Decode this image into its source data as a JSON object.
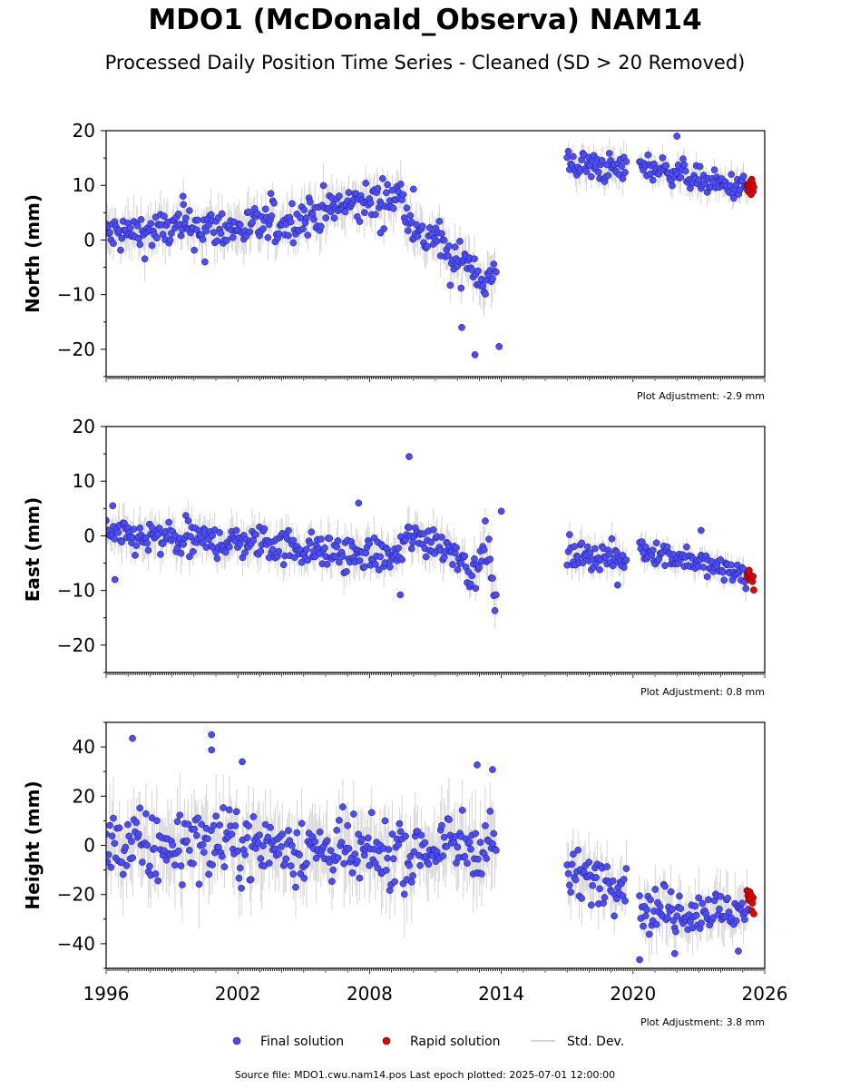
{
  "title": "MDO1 (McDonald_Observa) NAM14",
  "subtitle": "Processed Daily Position Time Series - Cleaned (SD > 20 Removed)",
  "colors": {
    "final": "#4b4bff",
    "final_edge": "#1a1a5c",
    "rapid": "#e00000",
    "stddev": "#b0b0b0"
  },
  "chart_data": {
    "type": "scatter",
    "x_range": [
      1996,
      2026
    ],
    "x_ticks": [
      "1996",
      "2002",
      "2008",
      "2014",
      "2020",
      "2026"
    ],
    "x_tick_values": [
      1996,
      2002,
      2008,
      2014,
      2020,
      2026
    ],
    "legend": {
      "placement": "bottom-center",
      "entries": [
        "Final solution",
        "Rapid solution",
        "Std. Dev."
      ]
    },
    "panels": [
      {
        "name": "north",
        "ylabel": "North (mm)",
        "ylim": [
          -25,
          20
        ],
        "yticks": [
          20,
          10,
          0,
          -10,
          -20
        ],
        "yticklabels": [
          "20",
          "10",
          "0",
          "−10",
          "−20"
        ],
        "adjustment": "Plot Adjustment: -2.9 mm",
        "segments": [
          {
            "series": "final",
            "x": [
              1996.0,
              1998,
              2000,
              2002,
              2004,
              2006,
              2008,
              2009.5,
              2010.3,
              2011,
              2011.8,
              2012.5,
              2013.2,
              2013.8
            ],
            "y": [
              1,
              1.5,
              2.5,
              2,
              3,
              5.5,
              7,
              8,
              0,
              1,
              -5,
              -3,
              -8,
              -6
            ],
            "spread": 3.5
          },
          {
            "series": "final",
            "x": [
              2017.0,
              2018,
              2019,
              2019.7
            ],
            "y": [
              14,
              13.5,
              13,
              13
            ],
            "spread": 2.5
          },
          {
            "series": "final",
            "x": [
              2020.3,
              2021,
              2022,
              2023,
              2024,
              2025.3
            ],
            "y": [
              14,
              13,
              12.5,
              11,
              10,
              9.5
            ],
            "spread": 2.2
          },
          {
            "series": "rapid",
            "x": [
              2025.2,
              2025.5
            ],
            "y": [
              10,
              9.5
            ],
            "spread": 1.5
          }
        ],
        "outliers": [
          {
            "x": 2022.0,
            "y": 19
          },
          {
            "x": 2012.8,
            "y": -21
          },
          {
            "x": 2013.9,
            "y": -19.5
          },
          {
            "x": 2012.2,
            "y": -16
          },
          {
            "x": 1999.5,
            "y": 8
          },
          {
            "x": 2003.5,
            "y": 8.5
          },
          {
            "x": 2000.5,
            "y": -4
          },
          {
            "x": 2008.5,
            "y": 1.3
          },
          {
            "x": 2010.0,
            "y": 9.3
          }
        ]
      },
      {
        "name": "east",
        "ylabel": "East (mm)",
        "ylim": [
          -25,
          20
        ],
        "yticks": [
          20,
          10,
          0,
          -10,
          -20
        ],
        "yticklabels": [
          "20",
          "10",
          "0",
          "−10",
          "−20"
        ],
        "adjustment": "Plot Adjustment: 0.8 mm",
        "segments": [
          {
            "series": "final",
            "x": [
              1996.0,
              1998,
              2000,
              2002,
              2004,
              2006,
              2008,
              2009.3,
              2009.8,
              2011,
              2012,
              2012.8,
              2013.3,
              2013.8
            ],
            "y": [
              0,
              -0.5,
              -1,
              -1,
              -1.5,
              -3,
              -3.5,
              -4,
              0,
              -1,
              -3,
              -8,
              0,
              -15
            ],
            "spread": 3
          },
          {
            "series": "final",
            "x": [
              2017.0,
              2018,
              2019,
              2019.7
            ],
            "y": [
              -3,
              -3.5,
              -4,
              -4.5
            ],
            "spread": 2.5
          },
          {
            "series": "final",
            "x": [
              2020.3,
              2021,
              2022,
              2023,
              2024,
              2025.3
            ],
            "y": [
              -2,
              -3,
              -4,
              -5,
              -6,
              -7.5
            ],
            "spread": 2
          },
          {
            "series": "rapid",
            "x": [
              2025.2,
              2025.5
            ],
            "y": [
              -7,
              -8.5
            ],
            "spread": 1.5
          }
        ],
        "outliers": [
          {
            "x": 2009.8,
            "y": 14.5
          },
          {
            "x": 2007.5,
            "y": 6
          },
          {
            "x": 1996.3,
            "y": 5.5
          },
          {
            "x": 2014.0,
            "y": 4.5
          },
          {
            "x": 2009.4,
            "y": -10.8
          },
          {
            "x": 2023.1,
            "y": 1
          },
          {
            "x": 1996.4,
            "y": -8
          },
          {
            "x": 2019.3,
            "y": -9
          }
        ]
      },
      {
        "name": "height",
        "ylabel": "Height (mm)",
        "ylim": [
          -50,
          50
        ],
        "yticks": [
          40,
          20,
          0,
          -20,
          -40
        ],
        "yticklabels": [
          "40",
          "20",
          "0",
          "−20",
          "−40"
        ],
        "adjustment": "Plot Adjustment: 3.8 mm",
        "segments": [
          {
            "series": "final",
            "x": [
              1996.0,
              1998,
              2000,
              2002,
              2004,
              2006,
              2008,
              2010,
              2012,
              2013.8
            ],
            "y": [
              0,
              -2,
              2,
              0,
              0,
              -2,
              -5,
              -3,
              0,
              2
            ],
            "spread": 13
          },
          {
            "series": "final",
            "x": [
              2017.0,
              2018,
              2019,
              2019.7
            ],
            "y": [
              -12,
              -13,
              -14,
              -15
            ],
            "spread": 9
          },
          {
            "series": "final",
            "x": [
              2020.3,
              2021,
              2022,
              2023,
              2024,
              2025.3
            ],
            "y": [
              -25,
              -26,
              -26,
              -27,
              -27,
              -26
            ],
            "spread": 9
          },
          {
            "series": "rapid",
            "x": [
              2025.2,
              2025.5
            ],
            "y": [
              -21,
              -24
            ],
            "spread": 4
          }
        ],
        "outliers": [
          {
            "x": 1997.2,
            "y": 43.5
          },
          {
            "x": 2000.8,
            "y": 45
          },
          {
            "x": 2000.8,
            "y": 38.8
          },
          {
            "x": 2002.2,
            "y": 34
          },
          {
            "x": 2013.6,
            "y": 30.8
          },
          {
            "x": 2012.9,
            "y": 32.7
          },
          {
            "x": 2021.9,
            "y": -44
          },
          {
            "x": 2020.3,
            "y": -46.5
          },
          {
            "x": 2024.8,
            "y": -43
          }
        ]
      }
    ]
  },
  "legend_labels": {
    "final": "Final solution",
    "rapid": "Rapid solution",
    "stddev": "Std. Dev."
  },
  "footer": "Source file: MDO1.cwu.nam14.pos  Last epoch plotted: 2025-07-01 12:00:00"
}
